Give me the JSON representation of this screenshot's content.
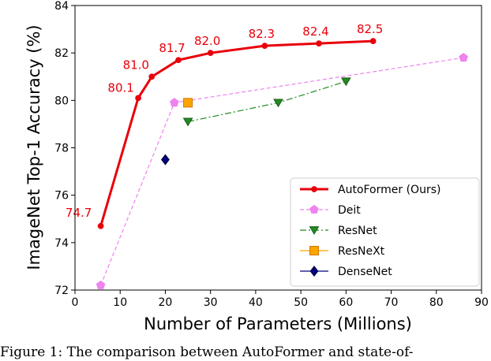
{
  "chart_data": {
    "type": "line",
    "xlabel": "Number of Parameters (Millions)",
    "ylabel": "ImageNet Top-1 Accuracy (%)",
    "xlim": [
      0,
      90
    ],
    "ylim": [
      72,
      84
    ],
    "xticks": [
      0,
      10,
      20,
      30,
      40,
      50,
      60,
      70,
      80,
      90
    ],
    "yticks": [
      72,
      74,
      76,
      78,
      80,
      82,
      84
    ],
    "grid": false,
    "legend_position": "lower-right",
    "series": [
      {
        "name": "AutoFormer (Ours)",
        "color": "#e8000b",
        "line_style": "solid",
        "marker": "circle",
        "x": [
          5.7,
          14,
          17,
          22.9,
          30,
          42,
          54,
          66
        ],
        "y": [
          74.7,
          80.1,
          81.0,
          81.7,
          82.0,
          82.3,
          82.4,
          82.5
        ],
        "labels": [
          "74.7",
          "80.1",
          "81.0",
          "81.7",
          "82.0",
          "82.3",
          "82.4",
          "82.5"
        ]
      },
      {
        "name": "Deit",
        "color": "#ee82ee",
        "line_style": "dashed",
        "marker": "pentagon",
        "x": [
          5.7,
          22,
          86
        ],
        "y": [
          72.2,
          79.9,
          81.8
        ]
      },
      {
        "name": "ResNet",
        "color": "#228b22",
        "line_style": "dashdot",
        "marker": "triangle-down",
        "x": [
          25,
          45,
          60
        ],
        "y": [
          79.1,
          79.9,
          80.8
        ]
      },
      {
        "name": "ResNeXt",
        "color": "#ffa500",
        "line_style": "none",
        "marker": "square",
        "x": [
          25
        ],
        "y": [
          79.9
        ]
      },
      {
        "name": "DenseNet",
        "color": "#000080",
        "line_style": "none",
        "marker": "diamond",
        "x": [
          20
        ],
        "y": [
          77.5
        ]
      }
    ]
  },
  "caption": "Figure 1: The comparison between AutoFormer and state-of-"
}
